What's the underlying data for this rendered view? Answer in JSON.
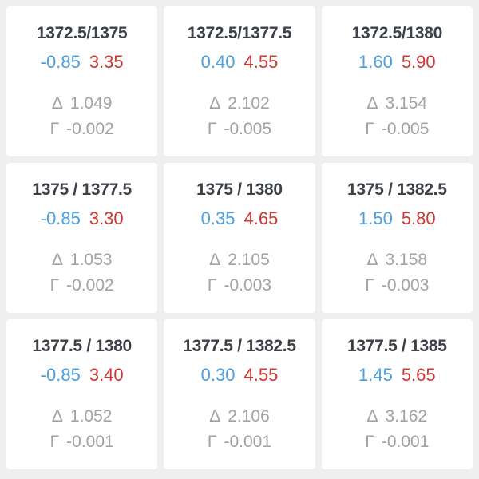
{
  "colors": {
    "background": "#efefef",
    "card_background": "#ffffff",
    "title_text": "#3c4047",
    "bid_blue": "#4aa0e0",
    "ask_red": "#cf3733",
    "greek_gray": "#a2a2a4"
  },
  "labels": {
    "delta_symbol": "Δ",
    "gamma_symbol": "Γ"
  },
  "cards": [
    {
      "title": "1372.5/1375",
      "bid": "-0.85",
      "ask": "3.35",
      "delta": "1.049",
      "gamma": "-0.002"
    },
    {
      "title": "1372.5/1377.5",
      "bid": "0.40",
      "ask": "4.55",
      "delta": "2.102",
      "gamma": "-0.005"
    },
    {
      "title": "1372.5/1380",
      "bid": "1.60",
      "ask": "5.90",
      "delta": "3.154",
      "gamma": "-0.005"
    },
    {
      "title": "1375 / 1377.5",
      "bid": "-0.85",
      "ask": "3.30",
      "delta": "1.053",
      "gamma": "-0.002"
    },
    {
      "title": "1375 / 1380",
      "bid": "0.35",
      "ask": "4.65",
      "delta": "2.105",
      "gamma": "-0.003"
    },
    {
      "title": "1375 / 1382.5",
      "bid": "1.50",
      "ask": "5.80",
      "delta": "3.158",
      "gamma": "-0.003"
    },
    {
      "title": "1377.5 / 1380",
      "bid": "-0.85",
      "ask": "3.40",
      "delta": "1.052",
      "gamma": "-0.001"
    },
    {
      "title": "1377.5 / 1382.5",
      "bid": "0.30",
      "ask": "4.55",
      "delta": "2.106",
      "gamma": "-0.001"
    },
    {
      "title": "1377.5 / 1385",
      "bid": "1.45",
      "ask": "5.65",
      "delta": "3.162",
      "gamma": "-0.001"
    }
  ]
}
